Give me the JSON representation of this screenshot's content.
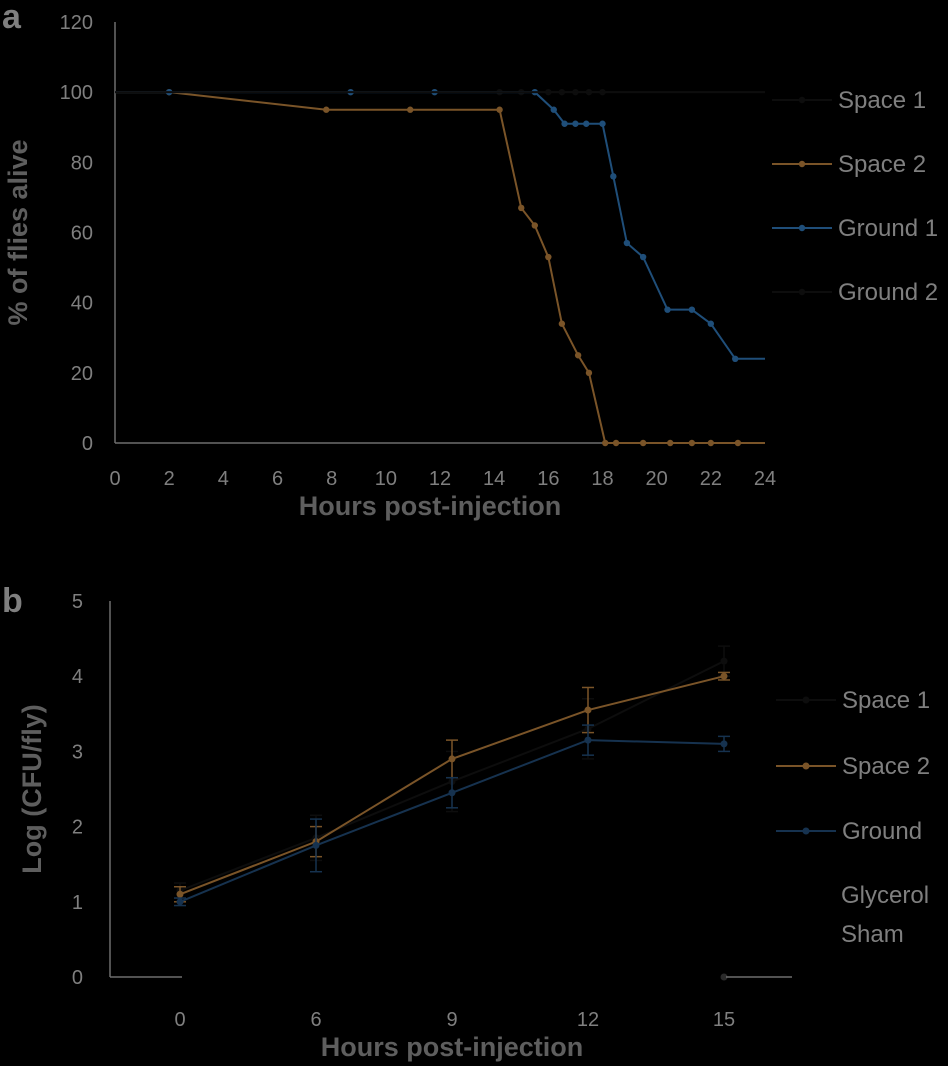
{
  "colors": {
    "background": "#000000",
    "axis": "#6e6e6e",
    "text": "#7f7f7f",
    "space1": "#0d0d0d",
    "space2": "#7a5428",
    "ground1": "#1f4e79",
    "ground2": "#0d0d0d",
    "ground": "#16324f",
    "glycerol_sham": "#2a2a2a"
  },
  "chart_data": [
    {
      "type": "line",
      "panel": "a",
      "xlabel": "Hours post-injection",
      "ylabel": "% of flies alive",
      "xlim": [
        0,
        24
      ],
      "ylim": [
        0,
        120
      ],
      "xticks": [
        0,
        2,
        4,
        6,
        8,
        10,
        12,
        14,
        16,
        18,
        20,
        22,
        24
      ],
      "yticks": [
        0,
        20,
        40,
        60,
        80,
        100,
        120
      ],
      "legend_position": "right",
      "series": [
        {
          "name": "Space 1",
          "color_key": "space1",
          "x": [
            0,
            8.7,
            11.8,
            14.2,
            15,
            15.5,
            16,
            16.5,
            17,
            17.5,
            18,
            24
          ],
          "y": [
            100,
            100,
            100,
            100,
            100,
            100,
            100,
            100,
            100,
            100,
            100,
            100
          ]
        },
        {
          "name": "Space 2",
          "color_key": "space2",
          "x": [
            0,
            2,
            7.8,
            10.9,
            14.2,
            15,
            15.5,
            16,
            16.5,
            17.1,
            17.5,
            18.1,
            18.5,
            19.5,
            20.5,
            21.3,
            22,
            23,
            24
          ],
          "y": [
            100,
            100,
            95,
            95,
            95,
            67,
            62,
            53,
            34,
            25,
            20,
            0,
            0,
            0,
            0,
            0,
            0,
            0,
            0
          ]
        },
        {
          "name": "Ground 1",
          "color_key": "ground1",
          "x": [
            0,
            2,
            8.7,
            11.8,
            15.5,
            16.2,
            16.6,
            17,
            17.4,
            18,
            18.4,
            18.9,
            19.5,
            20.4,
            21.3,
            22,
            22.9,
            24
          ],
          "y": [
            100,
            100,
            100,
            100,
            100,
            95,
            91,
            91,
            91,
            91,
            76,
            57,
            53,
            38,
            38,
            34,
            24,
            24
          ]
        },
        {
          "name": "Ground 2",
          "color_key": "ground2",
          "x": [
            0,
            24
          ],
          "y": [
            100,
            100
          ]
        }
      ]
    },
    {
      "type": "line",
      "panel": "b",
      "xlabel": "Hours post-injection",
      "ylabel": "Log (CFU/fly)",
      "categories": [
        "0",
        "6",
        "9",
        "12",
        "15"
      ],
      "ylim": [
        0,
        5
      ],
      "yticks": [
        0,
        1,
        2,
        3,
        4,
        5
      ],
      "legend_position": "right",
      "series": [
        {
          "name": "Space 1",
          "color_key": "space1",
          "values": [
            1.15,
            1.85,
            2.6,
            3.3,
            4.2
          ],
          "error": [
            0.1,
            0.3,
            0.4,
            0.4,
            0.2
          ]
        },
        {
          "name": "Space 2",
          "color_key": "space2",
          "values": [
            1.1,
            1.8,
            2.9,
            3.55,
            4.0
          ],
          "error": [
            0.1,
            0.2,
            0.25,
            0.3,
            0.05
          ]
        },
        {
          "name": "Ground",
          "color_key": "ground",
          "values": [
            1.0,
            1.75,
            2.45,
            3.15,
            3.1
          ],
          "error": [
            0.05,
            0.35,
            0.2,
            0.2,
            0.1
          ]
        },
        {
          "name": "Glycerol Sham",
          "legend_lines": [
            "Glycerol",
            "Sham"
          ],
          "color_key": "glycerol_sham",
          "values": [
            null,
            null,
            null,
            null,
            0
          ],
          "error": [
            null,
            null,
            null,
            null,
            0
          ]
        }
      ]
    }
  ]
}
